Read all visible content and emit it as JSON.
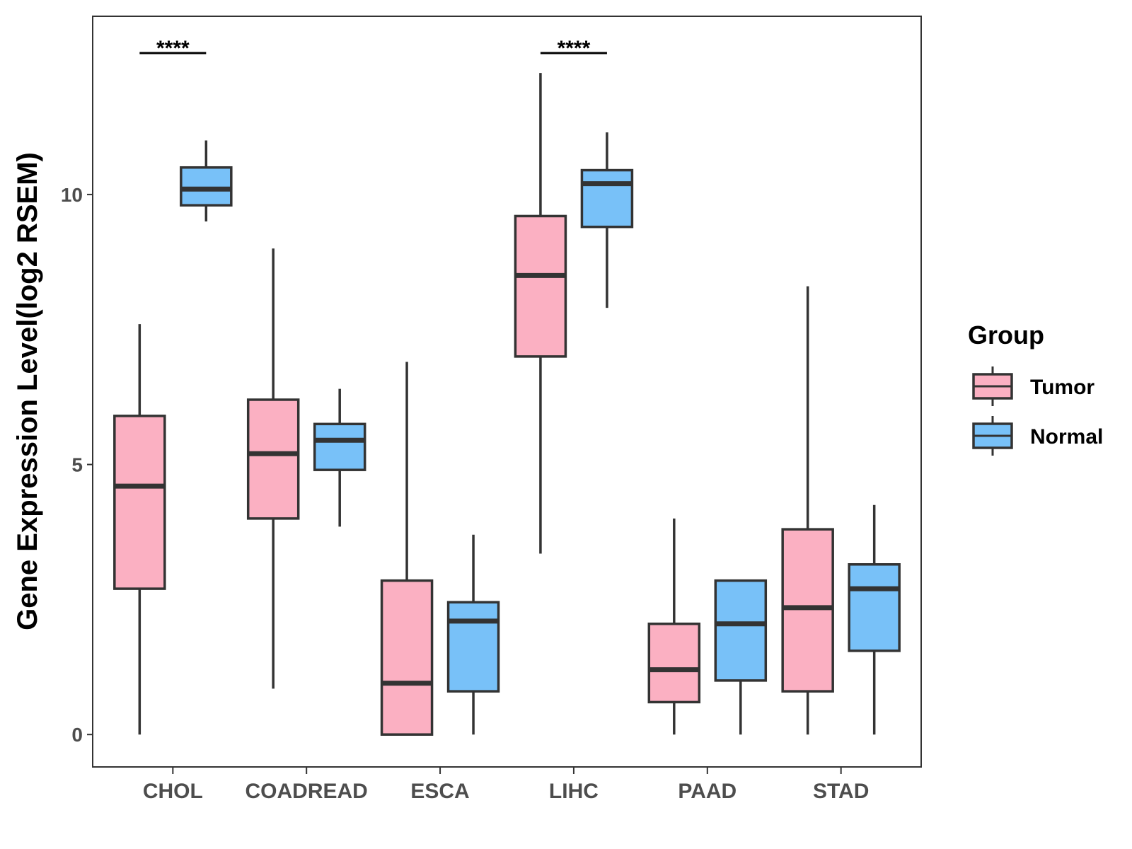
{
  "chart_data": {
    "type": "boxplot",
    "title": "",
    "xlabel": "",
    "ylabel": "Gene Expression Level(log2 RSEM)",
    "ylim": [
      -0.6,
      13.3
    ],
    "yticks": [
      0,
      5,
      10
    ],
    "grid": false,
    "categories": [
      "CHOL",
      "COADREAD",
      "ESCA",
      "LIHC",
      "PAAD",
      "STAD"
    ],
    "legend": {
      "title": "Group",
      "position": "right",
      "entries": [
        {
          "name": "Tumor",
          "color": "#FBB0C2"
        },
        {
          "name": "Normal",
          "color": "#78C1F8"
        }
      ]
    },
    "series": [
      {
        "name": "Tumor",
        "color": "#FBB0C2",
        "boxes": [
          {
            "min": 0.0,
            "q1": 2.7,
            "median": 4.6,
            "q3": 5.9,
            "max": 7.6
          },
          {
            "min": 0.85,
            "q1": 4.0,
            "median": 5.2,
            "q3": 6.2,
            "max": 9.0
          },
          {
            "min": 0.0,
            "q1": 0.0,
            "median": 0.95,
            "q3": 2.85,
            "max": 6.9
          },
          {
            "min": 3.35,
            "q1": 7.0,
            "median": 8.5,
            "q3": 9.6,
            "max": 12.25
          },
          {
            "min": 0.0,
            "q1": 0.6,
            "median": 1.2,
            "q3": 2.05,
            "max": 4.0
          },
          {
            "min": 0.0,
            "q1": 0.8,
            "median": 2.35,
            "q3": 3.8,
            "max": 8.3
          }
        ]
      },
      {
        "name": "Normal",
        "color": "#78C1F8",
        "boxes": [
          {
            "min": 9.5,
            "q1": 9.8,
            "median": 10.1,
            "q3": 10.5,
            "max": 11.0
          },
          {
            "min": 3.85,
            "q1": 4.9,
            "median": 5.45,
            "q3": 5.75,
            "max": 6.4
          },
          {
            "min": 0.0,
            "q1": 0.8,
            "median": 2.1,
            "q3": 2.45,
            "max": 3.7
          },
          {
            "min": 7.9,
            "q1": 9.4,
            "median": 10.2,
            "q3": 10.45,
            "max": 11.15
          },
          {
            "min": 0.0,
            "q1": 1.0,
            "median": 2.05,
            "q3": 2.85,
            "max": 2.85
          },
          {
            "min": 0.0,
            "q1": 1.55,
            "median": 2.7,
            "q3": 3.15,
            "max": 4.25
          }
        ]
      }
    ],
    "annotations": [
      {
        "category": "CHOL",
        "text": "****"
      },
      {
        "category": "LIHC",
        "text": "****"
      }
    ]
  }
}
